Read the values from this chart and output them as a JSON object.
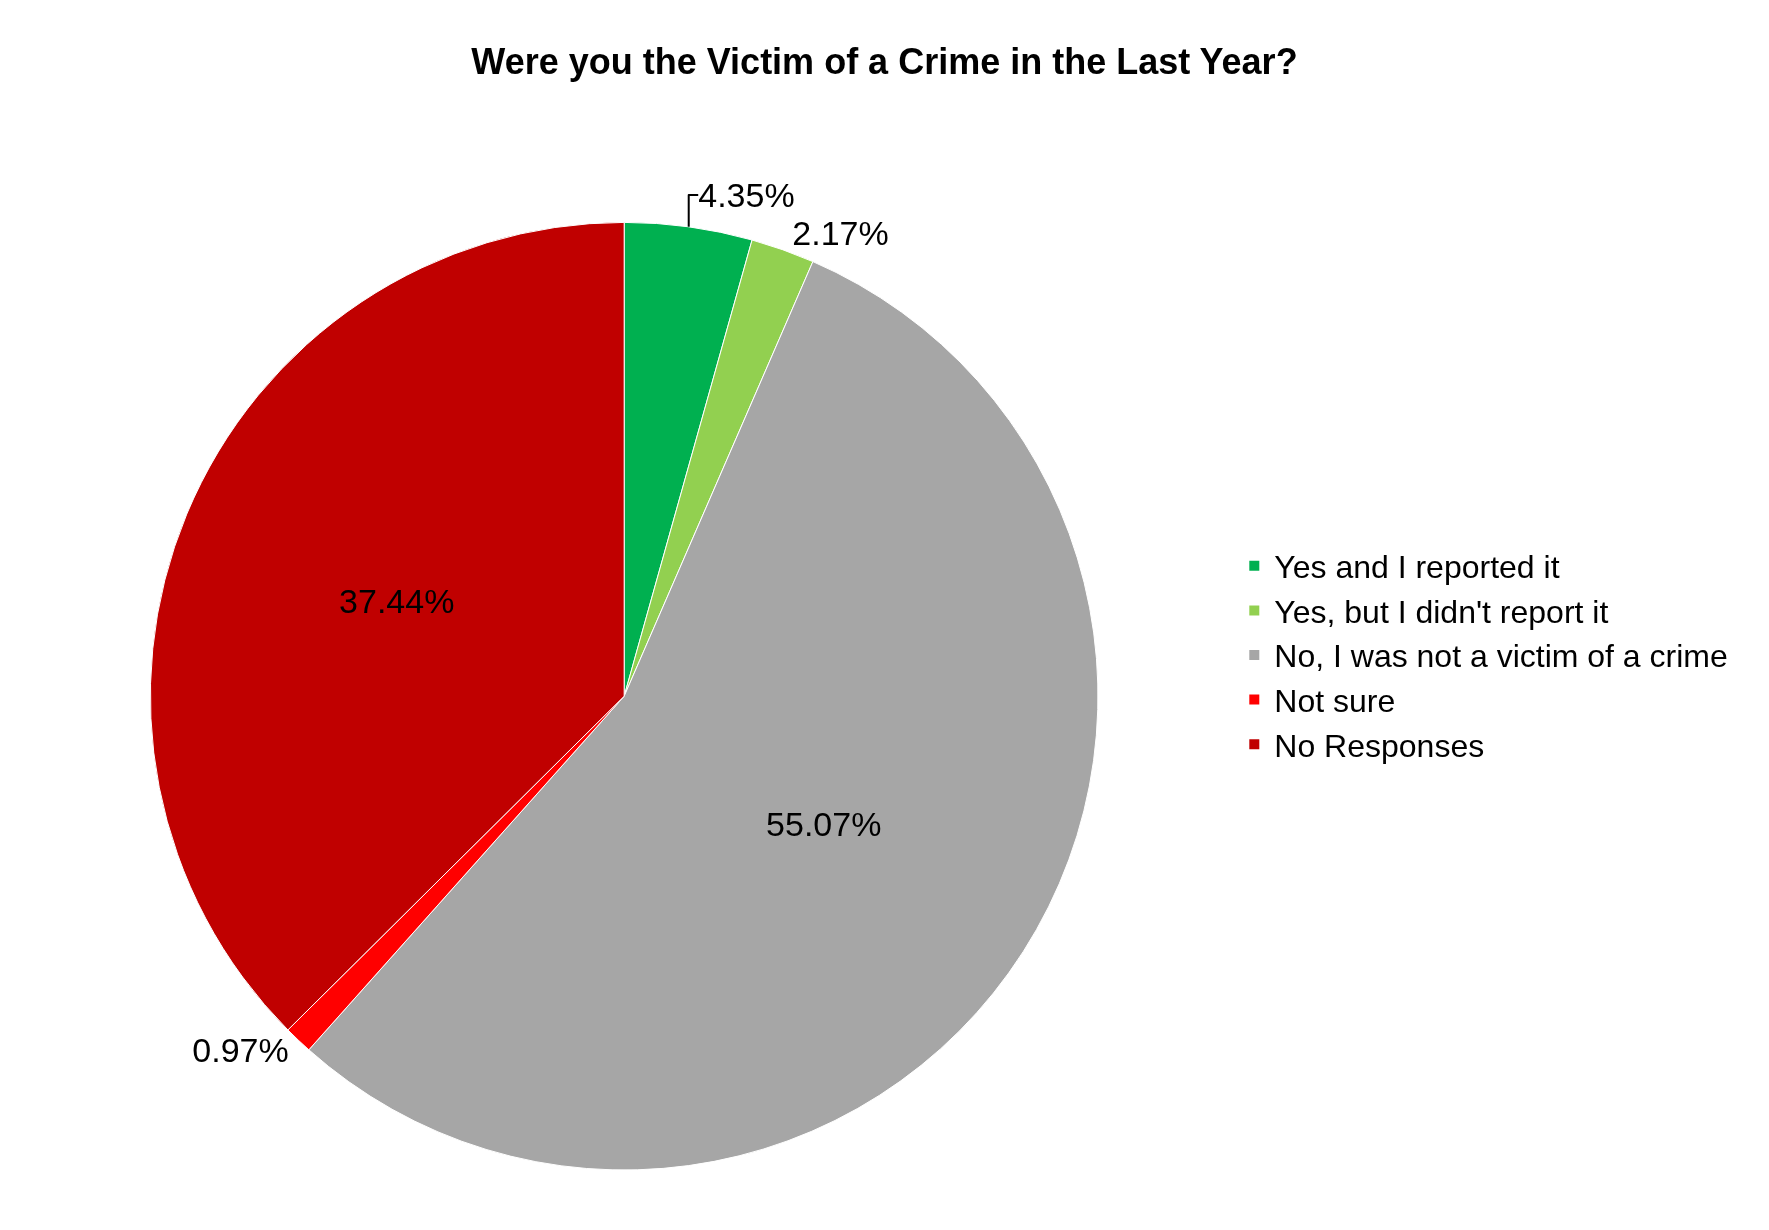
{
  "chart_data": {
    "type": "pie",
    "title": "Were you the Victim of a Crime in the Last Year?",
    "categories": [
      "Yes and I reported it",
      "Yes, but I didn't report it",
      "No, I was not a victim of a crime",
      "Not sure",
      "No Responses"
    ],
    "values": [
      4.35,
      2.17,
      55.07,
      0.97,
      37.44
    ],
    "colors": [
      "#00b050",
      "#92d050",
      "#a6a6a6",
      "#ff0000",
      "#c00000"
    ],
    "value_labels": [
      "4.35%",
      "2.17%",
      "55.07%",
      "0.97%",
      "37.44%"
    ],
    "legend": "right"
  }
}
